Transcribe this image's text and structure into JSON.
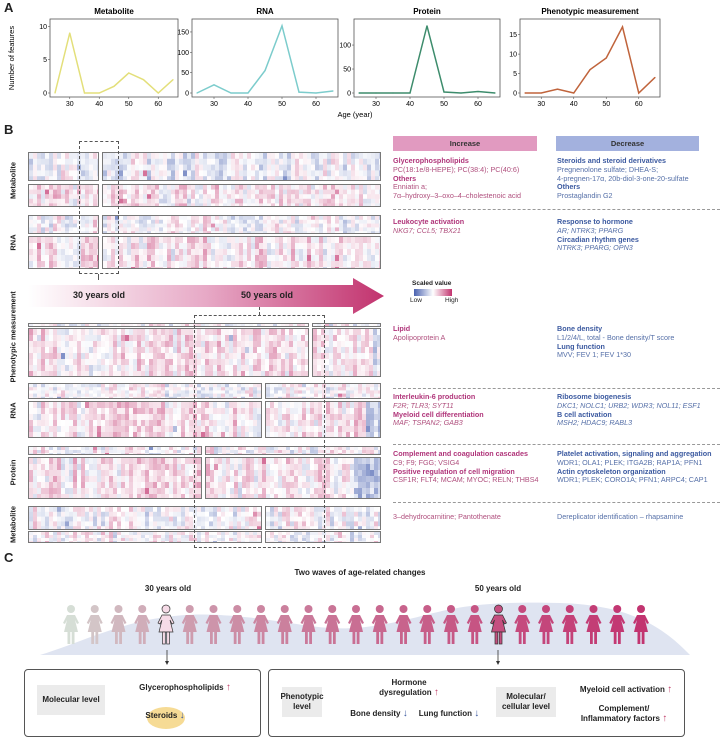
{
  "panel_labels": {
    "a": "A",
    "b": "B",
    "c": "C"
  },
  "chart_data": [
    {
      "type": "line",
      "title": "Metabolite",
      "x": [
        25,
        30,
        35,
        40,
        45,
        50,
        55,
        60,
        65
      ],
      "values": [
        0,
        9,
        0,
        0,
        1,
        3,
        2,
        0,
        2
      ],
      "ylim": [
        0,
        10.5
      ],
      "yticks": [
        0,
        5,
        10
      ],
      "xticks": [
        30,
        40,
        50,
        60
      ],
      "color": "#e3df7a",
      "ylabel": "Number of features",
      "xlabel": "Age (year)"
    },
    {
      "type": "line",
      "title": "RNA",
      "x": [
        25,
        30,
        35,
        40,
        45,
        50,
        55,
        60,
        65
      ],
      "values": [
        0,
        20,
        0,
        0,
        55,
        165,
        2,
        0,
        5
      ],
      "ylim": [
        0,
        172
      ],
      "yticks": [
        0,
        50,
        100,
        150
      ],
      "xticks": [
        30,
        40,
        50,
        60
      ],
      "color": "#7ccccc",
      "ylabel": "",
      "xlabel": "Age (year)"
    },
    {
      "type": "line",
      "title": "Protein",
      "x": [
        25,
        30,
        35,
        40,
        45,
        50,
        55,
        60,
        65
      ],
      "values": [
        0,
        0,
        0,
        0,
        140,
        2,
        0,
        3,
        0
      ],
      "ylim": [
        0,
        146
      ],
      "yticks": [
        0,
        50,
        100
      ],
      "xticks": [
        30,
        40,
        50,
        60
      ],
      "color": "#3d8c6c",
      "ylabel": "",
      "xlabel": "Age (year)"
    },
    {
      "type": "line",
      "title": "Phenotypic measurement",
      "x": [
        25,
        30,
        35,
        40,
        45,
        50,
        55,
        60,
        65
      ],
      "values": [
        0,
        0,
        1,
        0,
        6,
        9,
        17,
        0,
        4
      ],
      "ylim": [
        0,
        18
      ],
      "yticks": [
        0,
        5,
        10,
        15
      ],
      "xticks": [
        30,
        40,
        50,
        60
      ],
      "color": "#c0643c",
      "ylabel": "",
      "xlabel": "Age (year)"
    }
  ],
  "panel_a": {
    "ylabel": "Number of features",
    "xlabel": "Age (year)"
  },
  "panel_b": {
    "row_labels": {
      "metabolite": "Metabolite",
      "rna": "RNA",
      "phenotypic": "Phenotypic measurement",
      "protein": "Protein"
    },
    "arrow": {
      "left": "30 years old",
      "right": "50 years old"
    },
    "legend": {
      "title": "Scaled value",
      "low": "Low",
      "high": "High",
      "low_color": "#4a62b0",
      "high_color": "#c2336e"
    },
    "increase_header": "Increase",
    "decrease_header": "Decrease",
    "sections": [
      {
        "increase": [
          {
            "h": "Glycerophospholipids"
          },
          {
            "t": "PC(18:1e/8-HEPE); PC(38:4); PC(40:6)"
          },
          {
            "h": "Others"
          },
          {
            "t": "Enniatin a;"
          },
          {
            "t": "7α–hydroxy–3–oxo–4–cholestenoic acid"
          }
        ],
        "decrease": [
          {
            "h": "Steroids and steroid derivatives"
          },
          {
            "t": "Pregnenolone sulfate; DHEA-S;"
          },
          {
            "t": "4-pregnen-17α, 20b-diol-3-one-20-sulfate"
          },
          {
            "h": "Others"
          },
          {
            "t": "Prostaglandin G2"
          }
        ]
      },
      {
        "increase": [
          {
            "h": "Leukocyte activation"
          },
          {
            "i": "NKG7; CCL5; TBX21"
          }
        ],
        "decrease": [
          {
            "h": "Response to hormone"
          },
          {
            "i": "AR; NTRK3; PPARG"
          },
          {
            "h": "Circadian rhythm genes"
          },
          {
            "i": "NTRK3; PPARG; OPN3"
          }
        ]
      },
      {
        "increase": [
          {
            "h": "Lipid"
          },
          {
            "t": "Apolipoprotein A"
          }
        ],
        "decrease": [
          {
            "h": "Bone density"
          },
          {
            "t": "L1/2/4/L, total - Bone density/T score"
          },
          {
            "h": "Lung function"
          },
          {
            "t": "MVV; FEV 1; FEV 1*30"
          }
        ]
      },
      {
        "increase": [
          {
            "h": "Interleukin-6 production"
          },
          {
            "i": "F2R; TLR3; SYT11"
          },
          {
            "h": "Myeloid cell differentiation"
          },
          {
            "i": "MAF; TSPAN2; GAB3"
          }
        ],
        "decrease": [
          {
            "h": "Ribosome biogenesis"
          },
          {
            "i": "DKC1; NOLC1; URB2; WDR3; NOL11; ESF1"
          },
          {
            "h": "B cell activation"
          },
          {
            "i": "MSH2; HDAC9; RABL3"
          }
        ]
      },
      {
        "increase": [
          {
            "h": "Complement and coagulation cascades"
          },
          {
            "t": "C9; F9; FGG; VSIG4"
          },
          {
            "h": "Positive regulation of cell migration"
          },
          {
            "t": "CSF1R; FLT4; MCAM; MYOC; RELN; THBS4"
          }
        ],
        "decrease": [
          {
            "h": "Platelet activation, signaling and aggregation"
          },
          {
            "t": "WDR1; OLA1; PLEK; ITGA2B; RAP1A; PFN1"
          },
          {
            "h": "Actin cytoskeleton organization"
          },
          {
            "t": "WDR1; PLEK; CORO1A; PFN1; ARPC4; CAP1"
          }
        ]
      },
      {
        "increase": [
          {
            "t": "3–dehydrocarnitine; Pantothenate"
          }
        ],
        "decrease": [
          {
            "t": "Dereplicator identification – rhapsamine"
          }
        ]
      }
    ]
  },
  "panel_c": {
    "title": "Two waves of age-related changes",
    "age30": "30 years old",
    "age50": "50 years old",
    "figure_count": 25,
    "left_box": {
      "level": "Molecular level",
      "items": [
        {
          "label": "Glycerophospholipids",
          "dir": "↑"
        },
        {
          "label": "Steroids",
          "dir": "↓"
        }
      ]
    },
    "right_box": {
      "pheno_level": "Phenotypic level",
      "pheno_items": [
        {
          "label": "Hormone dysregulation",
          "dir": "↑"
        },
        {
          "label": "Bone density",
          "dir": "↓"
        },
        {
          "label": "Lung function",
          "dir": "↓"
        }
      ],
      "mol_level": "Molecular/ cellular level",
      "mol_items": [
        {
          "label": "Myeloid cell activation",
          "dir": "↑"
        },
        {
          "label": "Complement/ Inflammatory factors",
          "dir": "↑"
        }
      ]
    }
  }
}
